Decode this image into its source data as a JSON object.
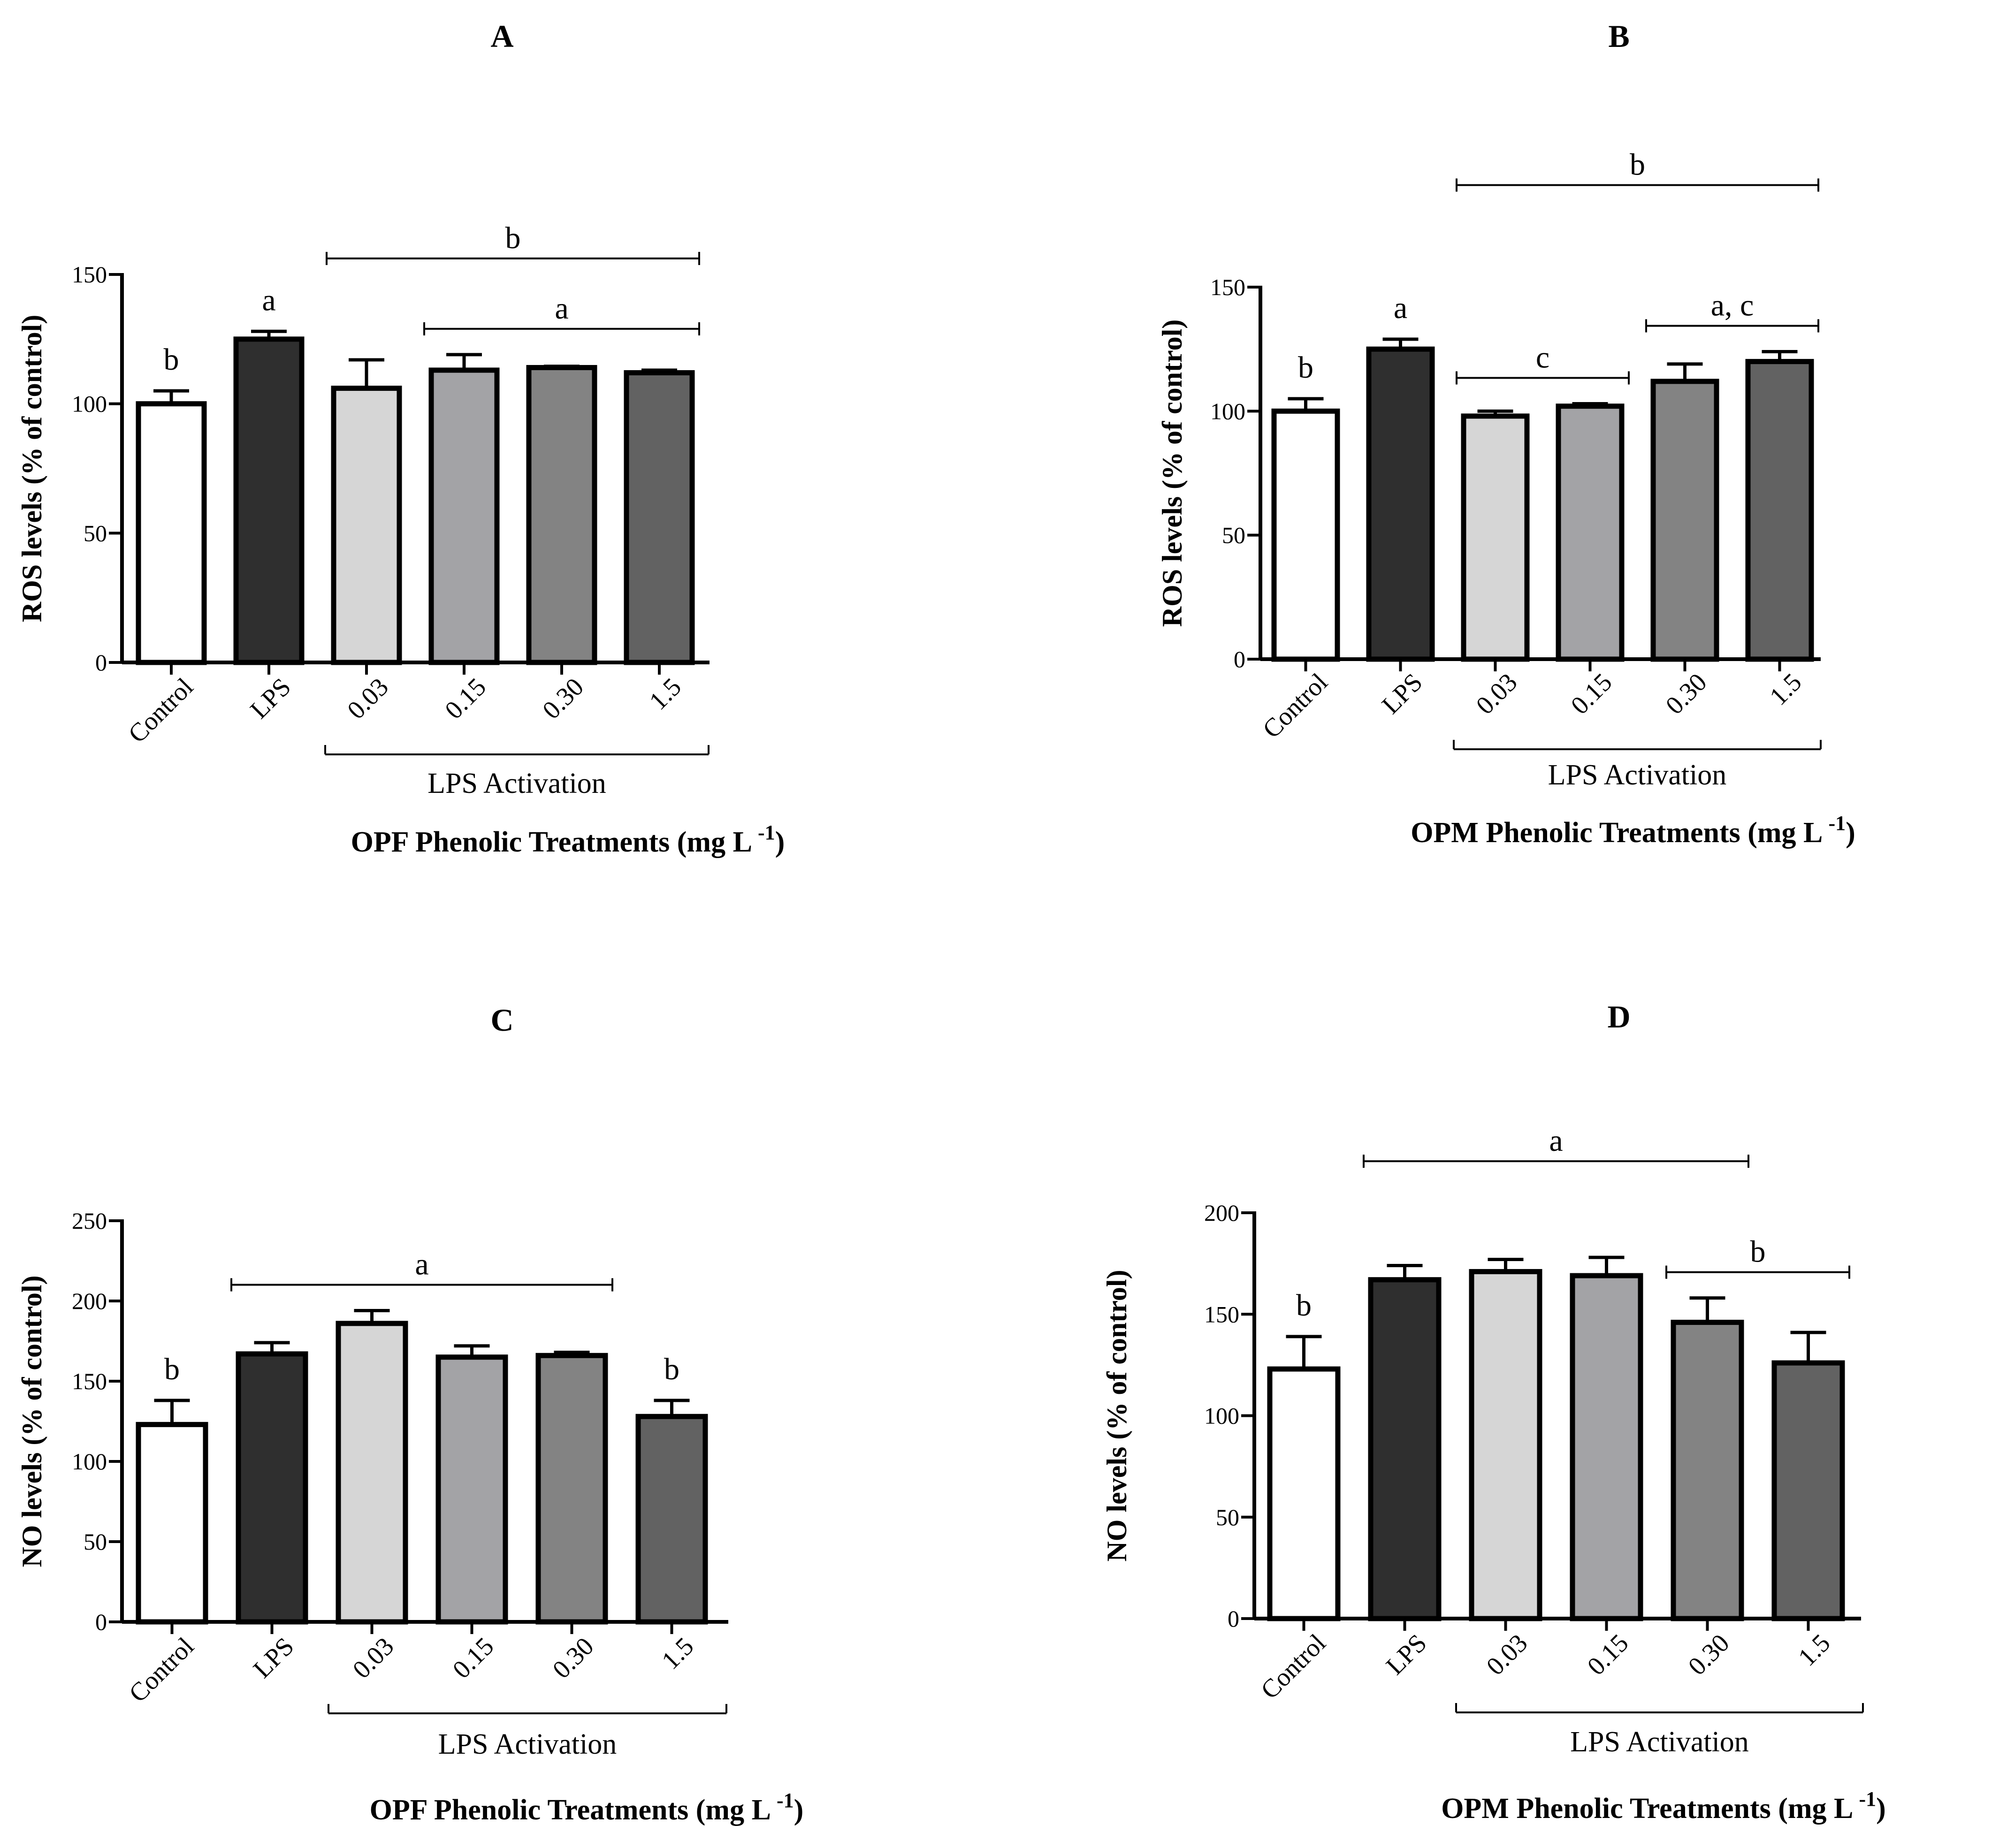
{
  "colors": {
    "Control": "#ffffff",
    "LPS": "#2f2f2f",
    "0.03": "#d6d6d6",
    "0.15": "#a3a3a6",
    "0.30": "#838383",
    "1.5": "#626262",
    "axis": "#000000"
  },
  "chart_data": [
    {
      "panel": "A",
      "type": "bar",
      "ylabel": "ROS levels (% of control)",
      "xlabel_main": "OPF Phenolic Treatments (mg L",
      "xlabel_sup": "-1",
      "xlabel_close": ")",
      "group_label": "LPS Activation",
      "categories": [
        "Control",
        "LPS",
        "0.03",
        "0.15",
        "0.30",
        "1.5"
      ],
      "values": [
        100,
        125,
        106,
        113,
        114,
        112
      ],
      "errors": [
        5,
        3,
        11,
        6,
        0.5,
        1
      ],
      "ylim": [
        0,
        150
      ],
      "yticks": [
        0,
        50,
        100,
        150
      ],
      "letters": [
        {
          "text": "b",
          "type": "bar",
          "index": 0
        },
        {
          "text": "a",
          "type": "bar",
          "index": 1
        },
        {
          "text": "b",
          "type": "bracket",
          "from": 2,
          "to": 5,
          "level": 2
        },
        {
          "text": "a",
          "type": "bracket",
          "from": 3,
          "to": 5,
          "level": 1
        }
      ]
    },
    {
      "panel": "B",
      "type": "bar",
      "ylabel": "ROS levels (% of control)",
      "xlabel_main": "OPM Phenolic Treatments (mg L",
      "xlabel_sup": "-1",
      "xlabel_close": ")",
      "group_label": "LPS Activation",
      "categories": [
        "Control",
        "LPS",
        "0.03",
        "0.15",
        "0.30",
        "1.5"
      ],
      "values": [
        100,
        125,
        98,
        102,
        112,
        120
      ],
      "errors": [
        5,
        4,
        2,
        1,
        7,
        4
      ],
      "ylim": [
        0,
        150
      ],
      "yticks": [
        0,
        50,
        100,
        150
      ],
      "letters": [
        {
          "text": "b",
          "type": "bar",
          "index": 0
        },
        {
          "text": "a",
          "type": "bar",
          "index": 1
        },
        {
          "text": "b",
          "type": "bracket",
          "from": 2,
          "to": 5,
          "level": 3
        },
        {
          "text": "c",
          "type": "bracket",
          "from": 2,
          "to": 3,
          "level": 1
        },
        {
          "text": "a, c",
          "type": "bracket",
          "from": 4,
          "to": 5,
          "level": 1
        }
      ]
    },
    {
      "panel": "C",
      "type": "bar",
      "ylabel": "NO levels (% of control)",
      "xlabel_main": "OPF Phenolic Treatments (mg L",
      "xlabel_sup": "-1",
      "xlabel_close": ")",
      "group_label": "LPS Activation",
      "categories": [
        "Control",
        "LPS",
        "0.03",
        "0.15",
        "0.30",
        "1.5"
      ],
      "values": [
        123,
        167,
        186,
        165,
        166,
        128
      ],
      "errors": [
        15,
        7,
        8,
        7,
        2,
        10
      ],
      "ylim": [
        0,
        250
      ],
      "yticks": [
        0,
        50,
        100,
        150,
        200,
        250
      ],
      "letters": [
        {
          "text": "b",
          "type": "bar",
          "index": 0
        },
        {
          "text": "a",
          "type": "bracket",
          "from": 1,
          "to": 4,
          "level": 1
        },
        {
          "text": "b",
          "type": "bar",
          "index": 5
        }
      ]
    },
    {
      "panel": "D",
      "type": "bar",
      "ylabel": "NO levels (% of control)",
      "xlabel_main": "OPM Phenolic Treatments (mg L",
      "xlabel_sup": "-1",
      "xlabel_close": ")",
      "group_label": "LPS Activation",
      "categories": [
        "Control",
        "LPS",
        "0.03",
        "0.15",
        "0.30",
        "1.5"
      ],
      "values": [
        123,
        167,
        171,
        169,
        146,
        126
      ],
      "errors": [
        16,
        7,
        6,
        9,
        12,
        15
      ],
      "ylim": [
        0,
        200
      ],
      "yticks": [
        0,
        50,
        100,
        150,
        200
      ],
      "letters": [
        {
          "text": "b",
          "type": "bar",
          "index": 0
        },
        {
          "text": "a",
          "type": "bracket",
          "from": 1,
          "to": 4,
          "level": 2
        },
        {
          "text": "b",
          "type": "bracket",
          "from": 4,
          "to": 5,
          "level": 1
        }
      ]
    }
  ]
}
